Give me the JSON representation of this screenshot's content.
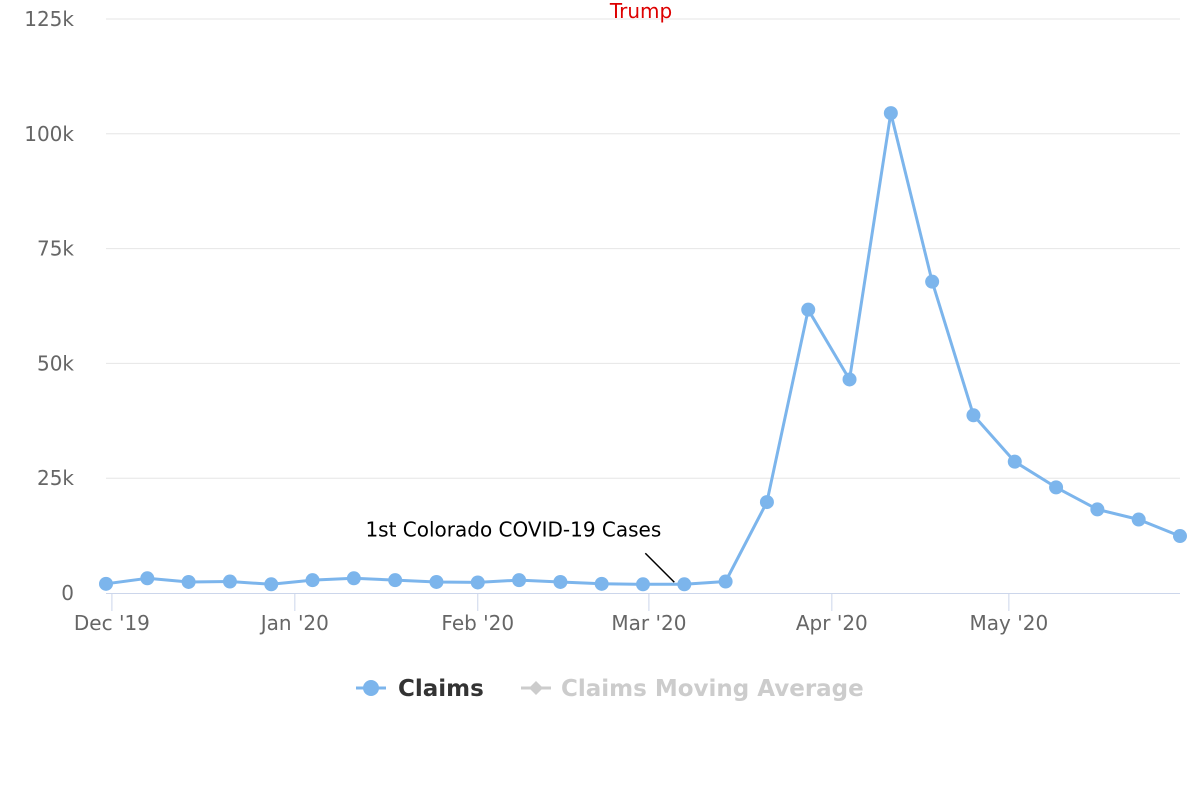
{
  "chart_data": {
    "type": "line",
    "title": "Trump",
    "xlabel": "",
    "ylabel": "",
    "x_ticks": [
      "Dec '19",
      "Jan '20",
      "Feb '20",
      "Mar '20",
      "Apr '20",
      "May '20"
    ],
    "y_ticks": [
      "0",
      "25k",
      "50k",
      "75k",
      "100k",
      "125k"
    ],
    "ylim": [
      0,
      125000
    ],
    "xlim": [
      "2019-11-30",
      "2020-05-30"
    ],
    "grid": true,
    "legend_position": "bottom-center",
    "series": [
      {
        "name": "Claims",
        "color": "#7cb5ec",
        "visible": true,
        "points": [
          {
            "x": "2019-11-30",
            "y": 2000
          },
          {
            "x": "2019-12-07",
            "y": 3200
          },
          {
            "x": "2019-12-14",
            "y": 2400
          },
          {
            "x": "2019-12-21",
            "y": 2500
          },
          {
            "x": "2019-12-28",
            "y": 1900
          },
          {
            "x": "2020-01-04",
            "y": 2800
          },
          {
            "x": "2020-01-11",
            "y": 3200
          },
          {
            "x": "2020-01-18",
            "y": 2800
          },
          {
            "x": "2020-01-25",
            "y": 2400
          },
          {
            "x": "2020-02-01",
            "y": 2300
          },
          {
            "x": "2020-02-08",
            "y": 2800
          },
          {
            "x": "2020-02-15",
            "y": 2400
          },
          {
            "x": "2020-02-22",
            "y": 2000
          },
          {
            "x": "2020-02-29",
            "y": 1900
          },
          {
            "x": "2020-03-07",
            "y": 1900
          },
          {
            "x": "2020-03-14",
            "y": 2500
          },
          {
            "x": "2020-03-21",
            "y": 19800
          },
          {
            "x": "2020-03-28",
            "y": 61700
          },
          {
            "x": "2020-04-04",
            "y": 46500
          },
          {
            "x": "2020-04-11",
            "y": 104500
          },
          {
            "x": "2020-04-18",
            "y": 67800
          },
          {
            "x": "2020-04-25",
            "y": 38700
          },
          {
            "x": "2020-05-02",
            "y": 28600
          },
          {
            "x": "2020-05-09",
            "y": 23000
          },
          {
            "x": "2020-05-16",
            "y": 18200
          },
          {
            "x": "2020-05-23",
            "y": 16000
          },
          {
            "x": "2020-05-30",
            "y": 12400
          }
        ]
      },
      {
        "name": "Claims Moving Average",
        "color": "#cccccc",
        "visible": false,
        "points": []
      }
    ],
    "annotations": [
      {
        "text": "1st Colorado COVID-19 Cases",
        "x": "2020-03-07",
        "y": 1900
      }
    ]
  },
  "colors": {
    "title": "#dd0000",
    "claims": "#7cb5ec",
    "hidden_series": "#cccccc",
    "axis_text": "#666666",
    "grid": "#e6e6e6",
    "axis_line": "#ccd6eb",
    "legend_text": "#333333",
    "annotation_text": "#000000"
  }
}
